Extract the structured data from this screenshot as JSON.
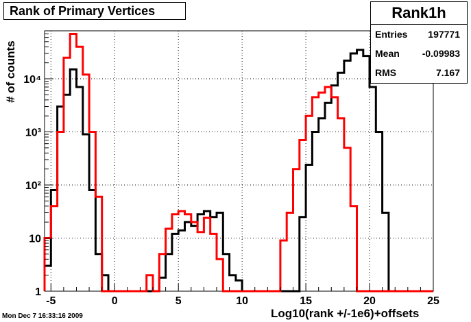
{
  "chart_data": {
    "type": "histogram",
    "title": "Rank of Primary Vertices",
    "xlabel": "Log10(rank +/-1e6)+offsets",
    "ylabel": "# of counts",
    "xlim": [
      -5.5,
      25
    ],
    "ylim": [
      1,
      80000
    ],
    "yscale": "log",
    "grid": true,
    "bin_width": 0.5,
    "x_ticks": [
      -5,
      0,
      5,
      10,
      15,
      20,
      25
    ],
    "x_tick_labels": [
      "-5",
      "0",
      "5",
      "10",
      "15",
      "20",
      "25"
    ],
    "y_ticks": [
      1,
      10,
      100,
      1000,
      10000
    ],
    "y_tick_labels": [
      "1",
      "10",
      "10²",
      "10³",
      "10⁴"
    ],
    "series": [
      {
        "color": "#000000",
        "bins": [
          [
            -5.5,
            3
          ],
          [
            -5,
            80
          ],
          [
            -4.5,
            3000
          ],
          [
            -4,
            5000
          ],
          [
            -3.5,
            15000
          ],
          [
            -3,
            7000
          ],
          [
            -2.5,
            900
          ],
          [
            -2,
            80
          ],
          [
            -1.5,
            5
          ],
          [
            -1,
            2
          ],
          [
            -0.5,
            1
          ],
          [
            0,
            1
          ],
          [
            0.5,
            1
          ],
          [
            1,
            1
          ],
          [
            1.5,
            1
          ],
          [
            2,
            1
          ],
          [
            2.5,
            1
          ],
          [
            3,
            1
          ],
          [
            3.5,
            1.8
          ],
          [
            4,
            5
          ],
          [
            4.5,
            12
          ],
          [
            5,
            14
          ],
          [
            5.5,
            20
          ],
          [
            6,
            17
          ],
          [
            6.5,
            28
          ],
          [
            7,
            32
          ],
          [
            7.5,
            25
          ],
          [
            8,
            30
          ],
          [
            8.5,
            5
          ],
          [
            9,
            2
          ],
          [
            9.5,
            1.6
          ],
          [
            10,
            1
          ],
          [
            10.5,
            1
          ],
          [
            11,
            1
          ],
          [
            11.5,
            1
          ],
          [
            12,
            1
          ],
          [
            12.5,
            1
          ],
          [
            13,
            1
          ],
          [
            13.5,
            1
          ],
          [
            14,
            1
          ],
          [
            14.5,
            25
          ],
          [
            15,
            240
          ],
          [
            15.5,
            1000
          ],
          [
            16,
            1800
          ],
          [
            16.5,
            3500
          ],
          [
            17,
            7500
          ],
          [
            17.5,
            13000
          ],
          [
            18,
            22000
          ],
          [
            18.5,
            30000
          ],
          [
            19,
            35000
          ],
          [
            19.5,
            27000
          ],
          [
            20,
            7000
          ],
          [
            20.5,
            1000
          ],
          [
            21,
            30
          ],
          [
            21.5,
            1
          ],
          [
            22,
            1
          ],
          [
            22.5,
            1
          ],
          [
            23,
            1
          ],
          [
            23.5,
            1
          ],
          [
            24,
            1
          ],
          [
            24.5,
            1
          ]
        ]
      },
      {
        "color": "#ff0000",
        "bins": [
          [
            -5.5,
            10
          ],
          [
            -5,
            40
          ],
          [
            -4.5,
            1000
          ],
          [
            -4,
            25000
          ],
          [
            -3.5,
            70000
          ],
          [
            -3,
            40000
          ],
          [
            -2.5,
            12000
          ],
          [
            -2,
            1000
          ],
          [
            -1.5,
            60
          ],
          [
            -1,
            1
          ],
          [
            -0.5,
            1
          ],
          [
            0,
            1
          ],
          [
            0.5,
            1
          ],
          [
            1,
            1
          ],
          [
            1.5,
            1
          ],
          [
            2,
            1
          ],
          [
            2.5,
            2
          ],
          [
            3,
            1
          ],
          [
            3.5,
            5
          ],
          [
            4,
            15
          ],
          [
            4.5,
            28
          ],
          [
            5,
            32
          ],
          [
            5.5,
            28
          ],
          [
            6,
            20
          ],
          [
            6.5,
            13
          ],
          [
            7,
            24
          ],
          [
            7.5,
            12
          ],
          [
            8,
            4
          ],
          [
            8.5,
            1
          ],
          [
            9,
            1
          ],
          [
            9.5,
            1
          ],
          [
            10,
            1
          ],
          [
            10.5,
            1
          ],
          [
            11,
            1
          ],
          [
            11.5,
            1
          ],
          [
            12,
            1
          ],
          [
            12.5,
            1
          ],
          [
            13,
            9
          ],
          [
            13.5,
            30
          ],
          [
            14,
            200
          ],
          [
            14.5,
            700
          ],
          [
            15,
            2000
          ],
          [
            15.5,
            4500
          ],
          [
            16,
            5500
          ],
          [
            16.5,
            7000
          ],
          [
            17,
            4500
          ],
          [
            17.5,
            1800
          ],
          [
            18,
            500
          ],
          [
            18.5,
            40
          ],
          [
            19,
            1
          ],
          [
            19.5,
            1
          ],
          [
            20,
            1
          ],
          [
            20.5,
            1
          ],
          [
            21,
            1
          ],
          [
            21.5,
            1
          ],
          [
            22,
            1
          ],
          [
            22.5,
            1
          ],
          [
            23,
            1
          ],
          [
            23.5,
            1
          ],
          [
            24,
            1
          ],
          [
            24.5,
            1
          ]
        ]
      }
    ]
  },
  "stats": {
    "title": "Rank1h",
    "rows": [
      {
        "label": "Entries",
        "value": "197771"
      },
      {
        "label": "Mean",
        "value": "-0.09983"
      },
      {
        "label": "RMS",
        "value": "7.167"
      }
    ]
  },
  "timestamp": "Mon Dec  7 16:33:16 2009"
}
